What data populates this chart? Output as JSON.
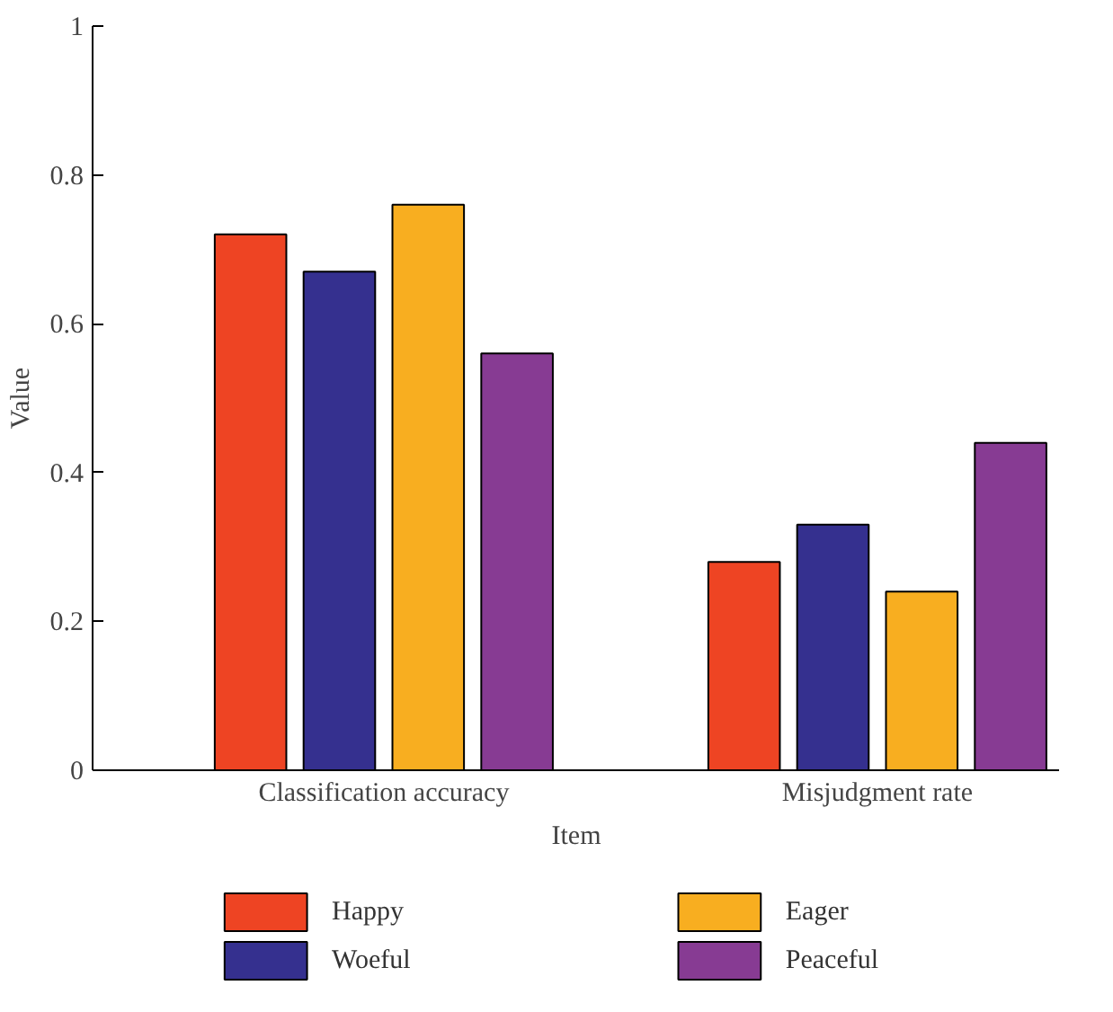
{
  "chart_data": {
    "type": "bar",
    "categories": [
      "Classification accuracy",
      "Misjudgment rate"
    ],
    "xlabel": "Item",
    "ylabel": "Value",
    "ylim": [
      0,
      1
    ],
    "yticks": [
      0,
      0.2,
      0.4,
      0.6,
      0.8,
      1
    ],
    "grid": false,
    "legend": "bottom",
    "series": [
      {
        "name": "Happy",
        "color": "#ee4423",
        "values": [
          0.72,
          0.28
        ]
      },
      {
        "name": "Woeful",
        "color": "#35308f",
        "values": [
          0.67,
          0.33
        ]
      },
      {
        "name": "Eager",
        "color": "#f8ae20",
        "values": [
          0.76,
          0.24
        ]
      },
      {
        "name": "Peaceful",
        "color": "#873b93",
        "values": [
          0.56,
          0.44
        ]
      }
    ]
  }
}
